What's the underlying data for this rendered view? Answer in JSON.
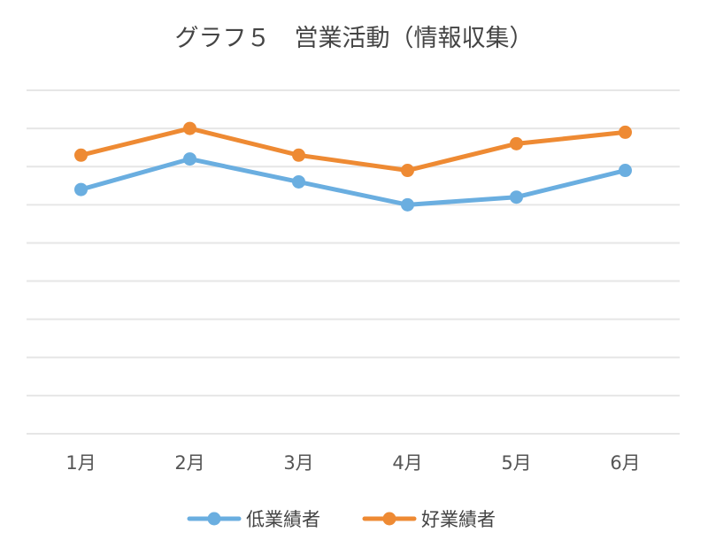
{
  "chart_data": {
    "type": "line",
    "title": "グラフ５　営業活動（情報収集）",
    "categories": [
      "1月",
      "2月",
      "3月",
      "4月",
      "5月",
      "6月"
    ],
    "series": [
      {
        "name": "低業績者",
        "values": [
          6.4,
          7.2,
          6.6,
          6.0,
          6.2,
          6.9
        ],
        "color": "#6aaee0"
      },
      {
        "name": "好業績者",
        "values": [
          7.3,
          8.0,
          7.3,
          6.9,
          7.6,
          7.9
        ],
        "color": "#ee8a33"
      }
    ],
    "ylim": [
      0,
      9
    ],
    "grid": true,
    "legend": "bottom"
  }
}
